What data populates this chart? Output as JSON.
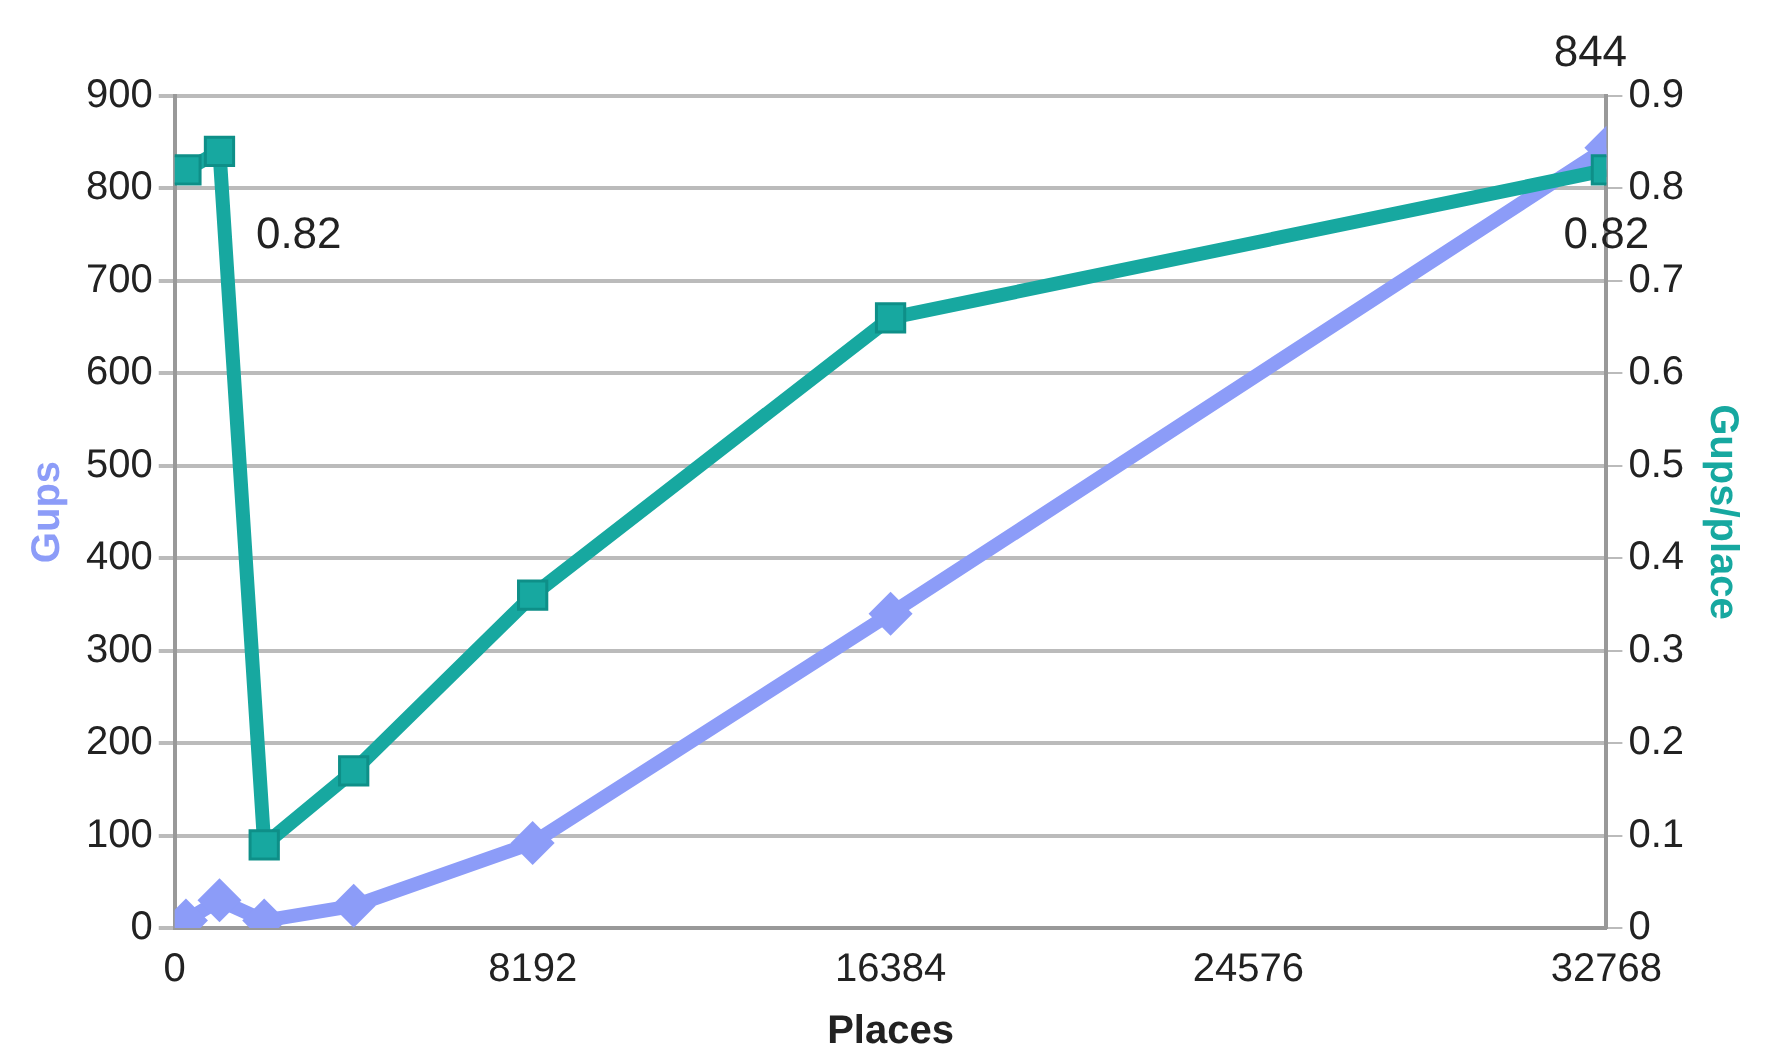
{
  "chart_data": {
    "type": "line",
    "xlabel": "Places",
    "ylabel": "Gups",
    "y2label": "Gups/place",
    "x": [
      256,
      1024,
      2048,
      4096,
      8192,
      16384,
      32768
    ],
    "series": [
      {
        "color": "#8c9cf8",
        "marker": "diamond",
        "values": [
          8,
          30,
          8,
          24,
          92,
          340,
          844
        ],
        "value_labels": [
          null,
          null,
          null,
          null,
          null,
          null,
          "844"
        ]
      },
      {
        "color": "#17a8a0",
        "marker": "square",
        "axis": "y2",
        "values": [
          0.82,
          0.84,
          0.09,
          0.17,
          0.36,
          0.66,
          0.82
        ],
        "value_labels": [
          "0.82",
          null,
          null,
          null,
          null,
          null,
          "0.82"
        ]
      }
    ],
    "xlim": [
      0,
      32768
    ],
    "xticks": [
      0,
      8192,
      16384,
      24576,
      32768
    ],
    "ylim": [
      0,
      900
    ],
    "yticks": [
      0,
      100,
      200,
      300,
      400,
      500,
      600,
      700,
      800,
      900
    ],
    "y2lim": [
      0,
      0.9
    ],
    "y2ticks": [
      0,
      0.1,
      0.2,
      0.3,
      0.4,
      0.5,
      0.6,
      0.7,
      0.8,
      0.9
    ],
    "grid": "y",
    "legend": false
  }
}
